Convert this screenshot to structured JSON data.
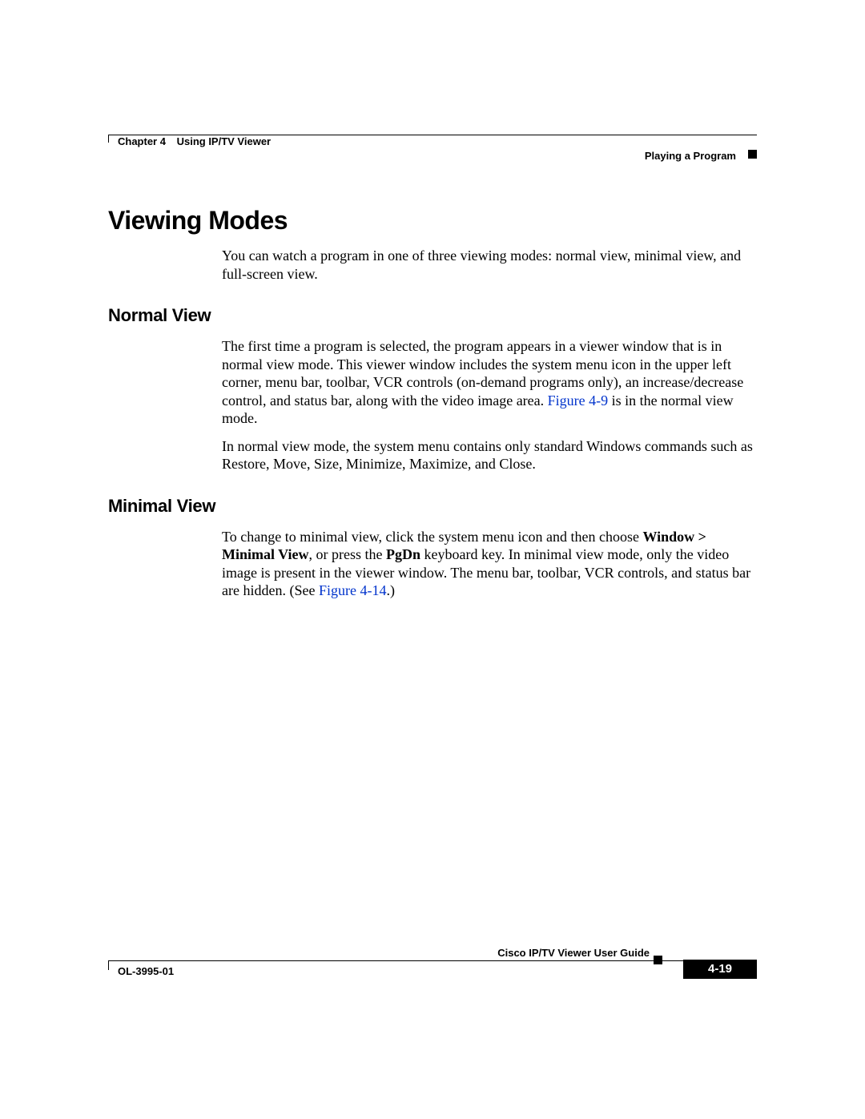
{
  "colors": {
    "link": "#0033cc",
    "text": "#000000",
    "bg": "#ffffff"
  },
  "fonts": {
    "heading": "Arial",
    "body": "Times New Roman",
    "h1_size": 32,
    "h2_size": 22,
    "body_size": 18,
    "meta_size": 13
  },
  "header": {
    "chapter_label": "Chapter 4",
    "chapter_title": "Using IP/TV Viewer",
    "section": "Playing a Program"
  },
  "content": {
    "h1": "Viewing Modes",
    "intro": "You can watch a program in one of three viewing modes: normal view, minimal view, and full-screen view.",
    "normal": {
      "heading": "Normal View",
      "p1_a": "The first time a program is selected, the program appears in a viewer window that is in normal view mode. This viewer window includes the system menu icon in the upper left corner, menu bar, toolbar, VCR controls (on-demand programs only), an increase/decrease control, and status bar, along with the video image area. ",
      "p1_link": "Figure 4-9",
      "p1_b": " is in the normal view mode.",
      "p2": "In normal view mode, the system menu contains only standard Windows commands such as Restore, Move, Size, Minimize, Maximize, and Close."
    },
    "minimal": {
      "heading": "Minimal View",
      "p1_a": "To change to minimal view, click the system menu icon and then choose ",
      "p1_bold1": "Window > Minimal View",
      "p1_b": ", or press the ",
      "p1_bold2": "PgDn",
      "p1_c": " keyboard key. In minimal view mode, only the video image is present in the viewer window. The menu bar, toolbar, VCR controls, and status bar are hidden. (See ",
      "p1_link": "Figure 4-14",
      "p1_d": ".)"
    }
  },
  "footer": {
    "guide": "Cisco IP/TV Viewer User Guide",
    "docnum": "OL-3995-01",
    "page": "4-19"
  }
}
